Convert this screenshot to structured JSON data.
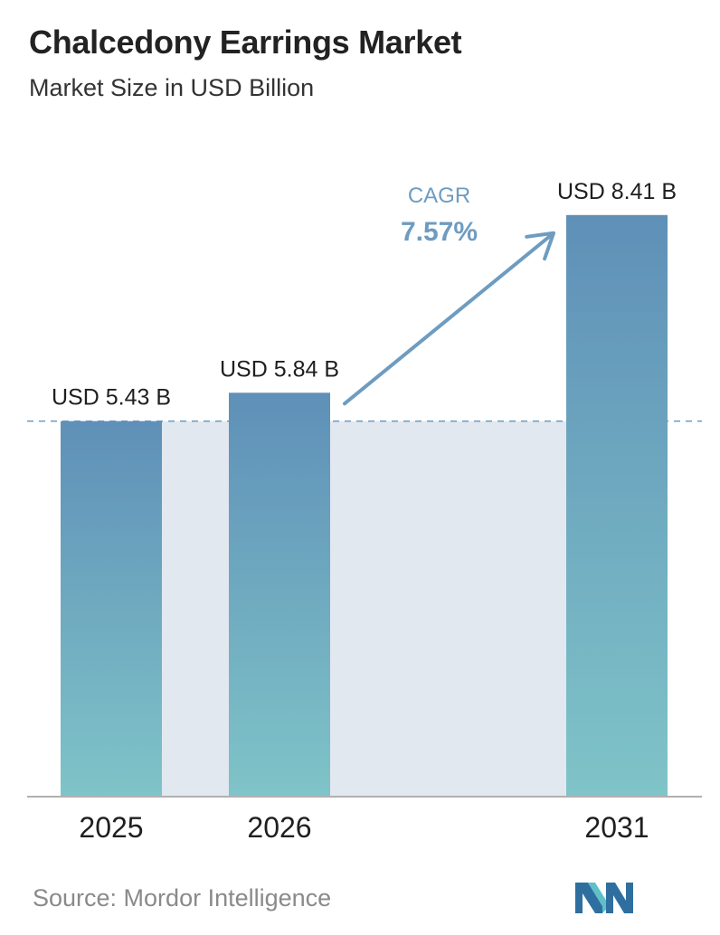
{
  "header": {
    "title": "Chalcedony Earrings Market",
    "subtitle": "Market Size in USD Billion"
  },
  "chart_data": {
    "type": "bar",
    "categories": [
      "2025",
      "2026",
      "2031"
    ],
    "values": [
      5.43,
      5.84,
      8.41
    ],
    "value_labels": [
      "USD 5.43 B",
      "USD 5.84 B",
      "USD 8.41 B"
    ],
    "title": "Chalcedony Earrings Market",
    "subtitle": "Market Size in USD Billion",
    "xlabel": "",
    "ylabel": "",
    "ylim": [
      0,
      10.8
    ],
    "grid": false,
    "reference_line_value": 5.43,
    "annotation": {
      "label": "CAGR",
      "value": "7.57%"
    },
    "colors": {
      "bar_top": "#5f90b8",
      "bar_bottom": "#7fc4c8",
      "band": "#e1e8f0",
      "annotation": "#6e9cc0",
      "axis": "#b0b0b0"
    }
  },
  "footer": {
    "source": "Source:  Mordor Intelligence",
    "logo_icon": "mordor-intelligence-logo-icon"
  }
}
